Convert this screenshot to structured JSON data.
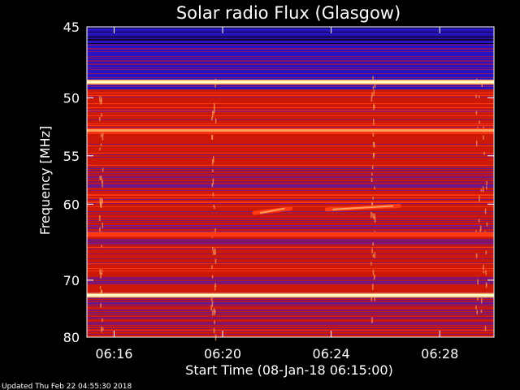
{
  "chart_data": {
    "type": "heatmap",
    "title": "Solar radio Flux (Glasgow)",
    "xlabel": "Start Time (08-Jan-18 06:15:00)",
    "ylabel": "Frequency [MHz]",
    "x_range": [
      "06:15:00",
      "06:30:00"
    ],
    "y_range_mhz": [
      45,
      80
    ],
    "y_scale": "reciprocal",
    "x_ticks": [
      "06:16",
      "06:20",
      "06:24",
      "06:28"
    ],
    "y_ticks": [
      45,
      50,
      55,
      60,
      70,
      80
    ],
    "grid": false,
    "colormap": [
      "#000030",
      "#1414d8",
      "#7a1478",
      "#cc1808",
      "#ff3a14",
      "#ffa05a",
      "#ffffc8"
    ],
    "bright_bands_mhz": [
      {
        "freq": 48.8,
        "level": "white"
      },
      {
        "freq": 52.7,
        "level": "orange"
      },
      {
        "freq": 63.6,
        "level": "red"
      },
      {
        "freq": 72.4,
        "level": "white"
      }
    ],
    "features": [
      {
        "type": "faint drift",
        "time_start": "06:21:10",
        "time_end": "06:22:30",
        "freq_start": 61.0,
        "freq_end": 60.5
      },
      {
        "type": "faint drift",
        "time_start": "06:23:50",
        "time_end": "06:26:30",
        "freq_start": 60.6,
        "freq_end": 60.2
      }
    ]
  },
  "footer": {
    "updated": "Updated Thu Feb 22 04:55:30 2018"
  }
}
